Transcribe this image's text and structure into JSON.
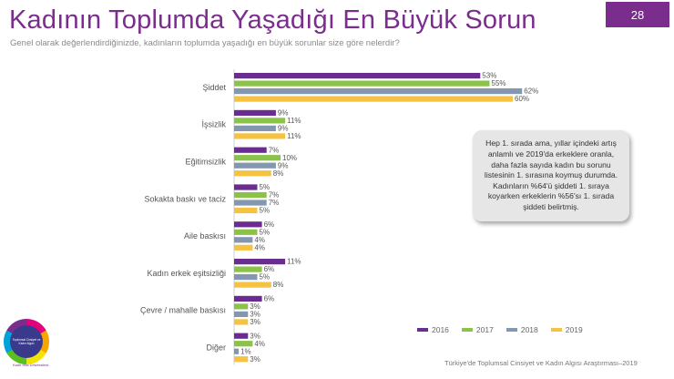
{
  "header": {
    "title": "Kadının Toplumda Yaşadığı En Büyük Sorun",
    "subtitle": "Genel olarak değerlendirdiğinizde, kadınların toplumda yaşadığı en büyük sorunlar size göre nelerdir?",
    "page_number": "28"
  },
  "callout": {
    "text": "Hep 1. sırada ama, yıllar içindeki artış anlamlı ve 2019'da erkeklere oranla, daha fazla sayıda kadın bu sorunu listesinin 1. sırasına koymuş durumda. Kadınların %64'ü şiddeti 1. sıraya koyarken erkeklerin %56'sı 1. sırada şiddeti belirtmiş."
  },
  "footer": {
    "source": "Türkiye'de Toplumsal Cinsiyet ve Kadın Algısı Araştırması–2019"
  },
  "logo": {
    "inner_text": "Toplumsal Cinsiyet ve Kadın Algısı",
    "caption": "Kadir Has Üniversitesi"
  },
  "colors": {
    "brand": "#7b2d8e",
    "s2016": "#6a2c91",
    "s2017": "#8bc34a",
    "s2018": "#8497b0",
    "s2019": "#f5c242"
  },
  "chart_data": {
    "type": "bar",
    "orientation": "horizontal",
    "categories": [
      "Şiddet",
      "İşsizlik",
      "Eğitimsizlik",
      "Sokakta baskı ve taciz",
      "Aile baskısı",
      "Kadın erkek eşitsizliği",
      "Çevre / mahalle baskısı",
      "Diğer"
    ],
    "series": [
      {
        "name": "2016",
        "color": "#6a2c91",
        "values": [
          53,
          9,
          7,
          5,
          6,
          11,
          6,
          3
        ]
      },
      {
        "name": "2017",
        "color": "#8bc34a",
        "values": [
          55,
          11,
          10,
          7,
          5,
          6,
          3,
          4
        ]
      },
      {
        "name": "2018",
        "color": "#8497b0",
        "values": [
          62,
          9,
          9,
          7,
          4,
          5,
          3,
          1
        ]
      },
      {
        "name": "2019",
        "color": "#f5c242",
        "values": [
          60,
          11,
          8,
          5,
          4,
          8,
          3,
          3
        ]
      }
    ],
    "value_suffix": "%",
    "grid": false,
    "legend_position": "bottom-right",
    "xlim": [
      0,
      65
    ]
  }
}
